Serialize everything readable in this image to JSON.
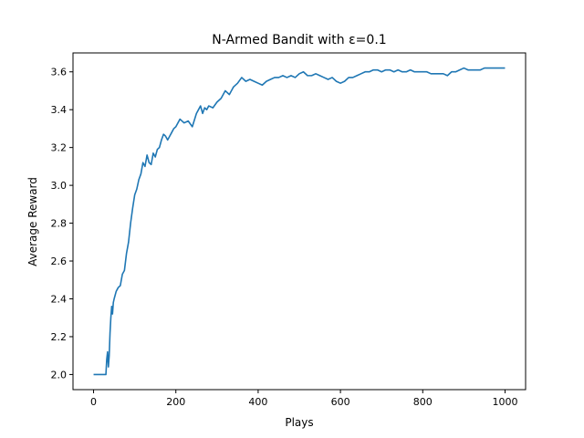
{
  "chart_data": {
    "type": "line",
    "title": "N-Armed Bandit with ε=0.1",
    "xlabel": "Plays",
    "ylabel": "Average Reward",
    "xlim": [
      -50,
      1050
    ],
    "ylim": [
      1.92,
      3.7
    ],
    "xticks": [
      0,
      200,
      400,
      600,
      800,
      1000
    ],
    "yticks": [
      2.0,
      2.2,
      2.4,
      2.6,
      2.8,
      3.0,
      3.2,
      3.4,
      3.6
    ],
    "grid": false,
    "line_color": "#1f77b4",
    "series": [
      {
        "x": [
          0,
          10,
          20,
          30,
          32,
          34,
          36,
          38,
          40,
          42,
          44,
          46,
          48,
          50,
          55,
          60,
          65,
          70,
          75,
          80,
          85,
          90,
          95,
          100,
          105,
          110,
          115,
          120,
          125,
          130,
          135,
          140,
          145,
          150,
          155,
          160,
          165,
          170,
          175,
          180,
          185,
          190,
          195,
          200,
          210,
          220,
          230,
          240,
          250,
          255,
          260,
          265,
          270,
          275,
          280,
          290,
          300,
          310,
          320,
          330,
          340,
          350,
          360,
          370,
          380,
          390,
          400,
          410,
          420,
          430,
          440,
          450,
          460,
          470,
          480,
          490,
          500,
          510,
          520,
          530,
          540,
          550,
          560,
          570,
          580,
          590,
          600,
          610,
          620,
          630,
          640,
          650,
          660,
          670,
          680,
          690,
          700,
          710,
          720,
          730,
          740,
          750,
          760,
          770,
          780,
          790,
          800,
          810,
          820,
          830,
          840,
          850,
          860,
          870,
          880,
          890,
          900,
          910,
          920,
          930,
          940,
          950,
          960,
          970,
          980,
          990,
          1000
        ],
        "values": [
          2.0,
          2.0,
          2.0,
          2.0,
          2.08,
          2.12,
          2.04,
          2.1,
          2.22,
          2.3,
          2.36,
          2.32,
          2.38,
          2.4,
          2.44,
          2.46,
          2.47,
          2.53,
          2.55,
          2.64,
          2.7,
          2.8,
          2.88,
          2.95,
          2.98,
          3.03,
          3.06,
          3.12,
          3.1,
          3.16,
          3.12,
          3.11,
          3.17,
          3.15,
          3.19,
          3.2,
          3.24,
          3.27,
          3.26,
          3.24,
          3.26,
          3.28,
          3.3,
          3.31,
          3.35,
          3.33,
          3.34,
          3.31,
          3.38,
          3.4,
          3.42,
          3.38,
          3.41,
          3.4,
          3.42,
          3.41,
          3.44,
          3.46,
          3.5,
          3.48,
          3.52,
          3.54,
          3.57,
          3.55,
          3.56,
          3.55,
          3.54,
          3.53,
          3.55,
          3.56,
          3.57,
          3.57,
          3.58,
          3.57,
          3.58,
          3.57,
          3.59,
          3.6,
          3.58,
          3.58,
          3.59,
          3.58,
          3.57,
          3.56,
          3.57,
          3.55,
          3.54,
          3.55,
          3.57,
          3.57,
          3.58,
          3.59,
          3.6,
          3.6,
          3.61,
          3.61,
          3.6,
          3.61,
          3.61,
          3.6,
          3.61,
          3.6,
          3.6,
          3.61,
          3.6,
          3.6,
          3.6,
          3.6,
          3.59,
          3.59,
          3.59,
          3.59,
          3.58,
          3.6,
          3.6,
          3.61,
          3.62,
          3.61,
          3.61,
          3.61,
          3.61,
          3.62,
          3.62,
          3.62,
          3.62,
          3.62,
          3.62
        ]
      }
    ]
  }
}
